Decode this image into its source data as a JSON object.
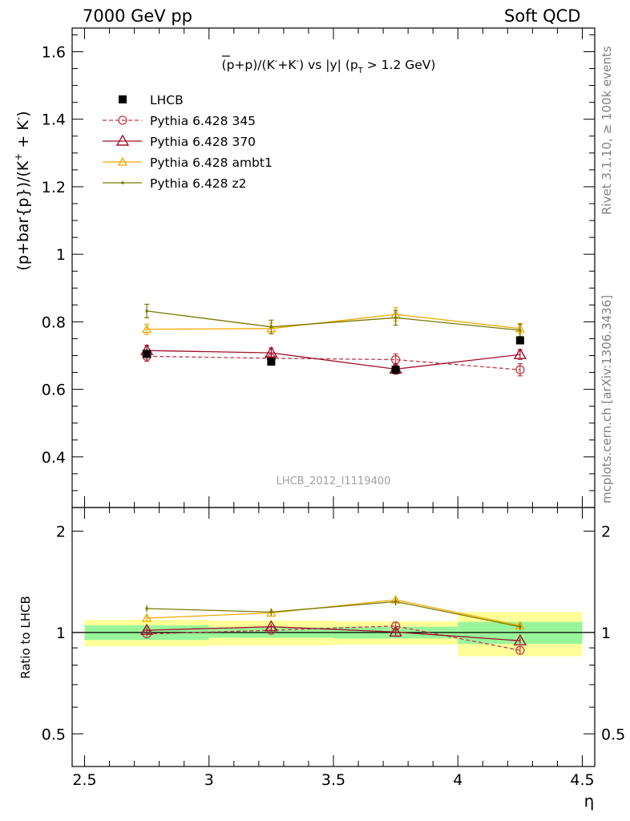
{
  "header": {
    "left": "7000 GeV pp",
    "right": "Soft QCD"
  },
  "side_labels": {
    "rivet": "Rivet 3.1.10, ≥ 100k events",
    "mcplots": "mcplots.cern.ch [arXiv:1306.3436]"
  },
  "plot": {
    "title_parts": {
      "open": "(",
      "pbar": "p",
      "mid": "+p)/(K",
      "sup1": "-",
      "plus": "+K",
      "sup2": "-",
      "vs": ") vs |y| (p",
      "sub": "T",
      "tail": " > 1.2 GeV)"
    },
    "ylabel": "(p+bar{p})/(K",
    "ylabel_sup": "+",
    "ylabel_end": " + K",
    "ylabel_sup2": "-",
    "ylabel_close": ")",
    "ratio_ylabel": "Ratio to LHCB",
    "xlabel": "η",
    "watermark": "LHCB_2012_I1119400",
    "colors": {
      "data": "#000000",
      "p345": "#c0394a",
      "p370": "#a0102a",
      "ambt1": "#f0a800",
      "z2": "#7a7a00",
      "band_inner": "#99f599",
      "band_outer": "#ffff99"
    }
  },
  "chart_data": {
    "type": "scatter",
    "x_bins": [
      [
        2.5,
        3.0
      ],
      [
        3.0,
        3.5
      ],
      [
        3.5,
        4.0
      ],
      [
        4.0,
        4.5
      ]
    ],
    "x": [
      2.75,
      3.25,
      3.75,
      4.25
    ],
    "xlim": [
      2.45,
      4.55
    ],
    "ylim_main": [
      0.25,
      1.67
    ],
    "ylim_ratio": [
      0.4,
      2.35
    ],
    "ratio_log_scale": true,
    "x_ticks": [
      "2.5",
      "3",
      "3.5",
      "4",
      "4.5"
    ],
    "y_ticks_main": [
      "0.4",
      "0.6",
      "0.8",
      "1",
      "1.2",
      "1.4",
      "1.6"
    ],
    "y_ticks_ratio": [
      "0.5",
      "1",
      "2"
    ],
    "data": {
      "name": "LHCB",
      "values": [
        0.705,
        0.682,
        0.658,
        0.745
      ],
      "errors": [
        0.015,
        0.01,
        0.01,
        0.01
      ],
      "band_inner": [
        0.05,
        0.035,
        0.04,
        0.075
      ],
      "band_outer": [
        0.09,
        0.085,
        0.08,
        0.15
      ]
    },
    "series": [
      {
        "name": "Pythia 6.428 345",
        "key": "p345",
        "marker": "circle",
        "dashed": true,
        "values": [
          0.698,
          0.692,
          0.688,
          0.658
        ],
        "errors": [
          0.015,
          0.015,
          0.017,
          0.018
        ],
        "ratio": [
          0.99,
          1.015,
          1.045,
          0.885
        ]
      },
      {
        "name": "Pythia 6.428 370",
        "key": "p370",
        "marker": "triangle",
        "dashed": false,
        "values": [
          0.715,
          0.708,
          0.66,
          0.703
        ],
        "errors": [
          0.015,
          0.014,
          0.015,
          0.014
        ],
        "ratio": [
          1.015,
          1.04,
          1.003,
          0.945
        ]
      },
      {
        "name": "Pythia 6.428 ambt1",
        "key": "ambt1",
        "marker": "triangle-small",
        "dashed": false,
        "values": [
          0.778,
          0.78,
          0.822,
          0.78
        ],
        "errors": [
          0.015,
          0.016,
          0.02,
          0.015
        ],
        "ratio": [
          1.103,
          1.143,
          1.25,
          1.048
        ]
      },
      {
        "name": "Pythia 6.428 z2",
        "key": "z2",
        "marker": "dot",
        "dashed": false,
        "values": [
          0.832,
          0.785,
          0.812,
          0.775
        ],
        "errors": [
          0.02,
          0.02,
          0.022,
          0.018
        ],
        "ratio": [
          1.178,
          1.15,
          1.235,
          1.04
        ]
      }
    ]
  }
}
